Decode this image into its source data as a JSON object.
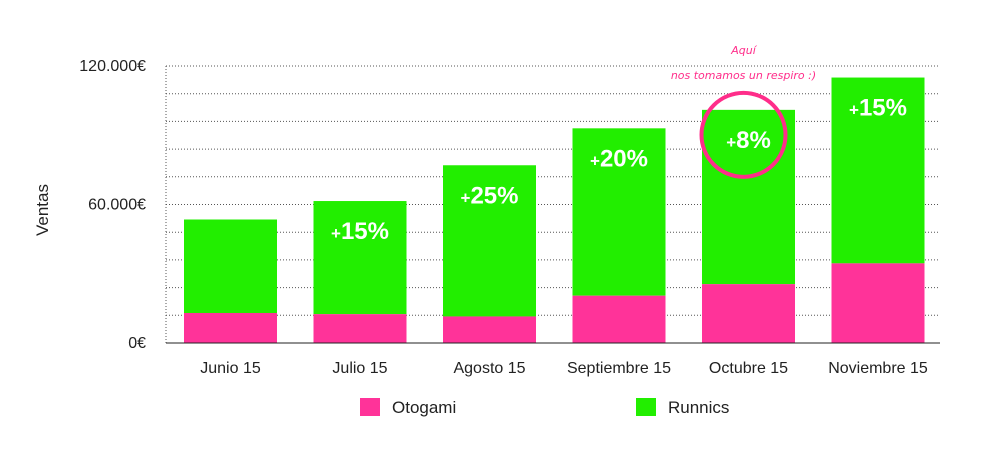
{
  "chart_data": {
    "type": "bar",
    "stacked": true,
    "ylabel": "Ventas",
    "ylim": [
      0,
      120000
    ],
    "yticks": [
      0,
      60000,
      120000
    ],
    "ytick_labels": [
      "0€",
      "60.000€",
      "120.000€"
    ],
    "grid": "horizontal dotted",
    "categories": [
      "Junio 15",
      "Julio 15",
      "Agosto 15",
      "Septiembre 15",
      "Octubre 15",
      "Noviembre 15"
    ],
    "series": [
      {
        "name": "Otogami",
        "color": "#ff3399",
        "values": [
          13000,
          12500,
          11500,
          20500,
          25500,
          34500
        ]
      },
      {
        "name": "Runnics",
        "color": "#22ee00",
        "values": [
          40500,
          49000,
          65500,
          72500,
          75500,
          80500
        ]
      }
    ],
    "growth_labels": [
      "",
      "+15%",
      "+25%",
      "+20%",
      "+8%",
      "+15%"
    ],
    "annotation": {
      "line1": "Aquí",
      "line2": "nos tomamos un respiro :)",
      "category": "Octubre 15",
      "color": "#ff2d8a"
    },
    "legend": {
      "position": "bottom"
    }
  }
}
